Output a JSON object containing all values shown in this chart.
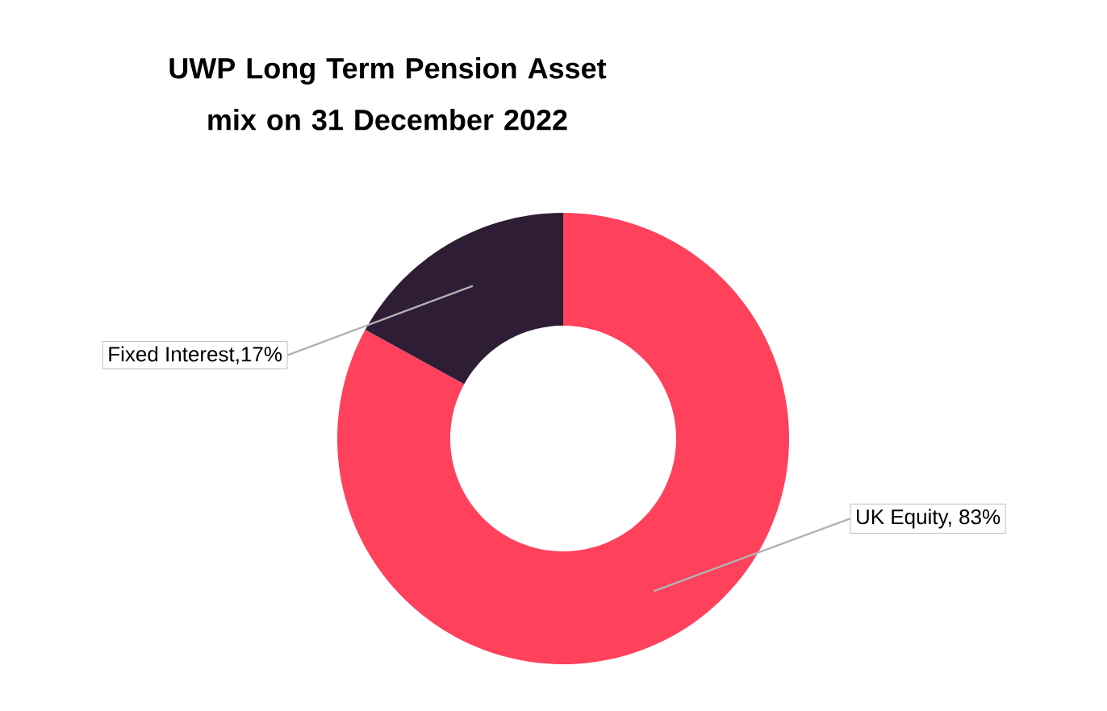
{
  "chart_data": {
    "type": "donut",
    "title": "UWP Long Term Pension Asset mix on 31 December 2022",
    "categories": [
      null,
      null
    ],
    "values": [
      83,
      17
    ],
    "colors": [
      "#ff415c",
      "#2f1c35"
    ],
    "value_labels": [
      "UK Equity, 83%",
      "Fixed Interest,17%"
    ]
  }
}
